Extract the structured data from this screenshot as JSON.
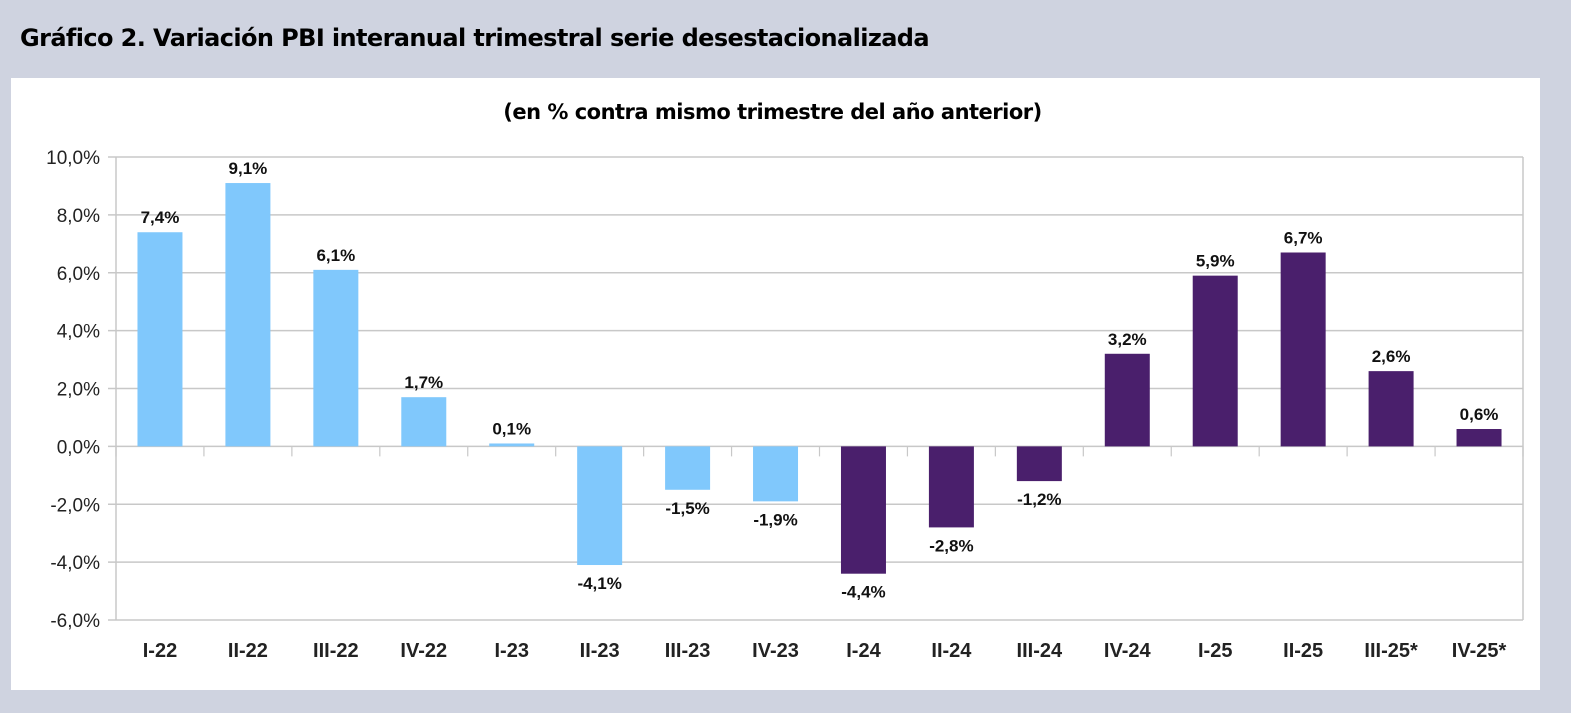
{
  "header": {
    "title": "Gráfico 2. Variación PBI interanual trimestral serie desestacionalizada"
  },
  "chart_data": {
    "type": "bar",
    "title": "Gráfico 2. Variación PBI interanual trimestral serie desestacionalizada",
    "subtitle": "(en % contra mismo trimestre del año anterior)",
    "xlabel": "",
    "ylabel": "",
    "categories": [
      "I-22",
      "II-22",
      "III-22",
      "IV-22",
      "I-23",
      "II-23",
      "III-23",
      "IV-23",
      "I-24",
      "II-24",
      "III-24",
      "IV-24",
      "I-25",
      "II-25",
      "III-25*",
      "IV-25*"
    ],
    "values": [
      7.4,
      9.1,
      6.1,
      1.7,
      0.1,
      -4.1,
      -1.5,
      -1.9,
      -4.4,
      -2.8,
      -1.2,
      3.2,
      5.9,
      6.7,
      2.6,
      0.6
    ],
    "data_labels": [
      "7,4%",
      "9,1%",
      "6,1%",
      "1,7%",
      "0,1%",
      "-4,1%",
      "-1,5%",
      "-1,9%",
      "-4,4%",
      "-2,8%",
      "-1,2%",
      "3,2%",
      "5,9%",
      "6,7%",
      "2,6%",
      "0,6%"
    ],
    "ylim": [
      -6,
      10
    ],
    "yticks": [
      10,
      8,
      6,
      4,
      2,
      0,
      -2,
      -4,
      -6
    ],
    "ytick_labels": [
      "10,0%",
      "8,0%",
      "6,0%",
      "4,0%",
      "2,0%",
      "0,0%",
      "-2,0%",
      "-4,0%",
      "-6,0%"
    ],
    "grid": true,
    "legend": "none",
    "bar_colors": [
      "#80c8fc",
      "#80c8fc",
      "#80c8fc",
      "#80c8fc",
      "#80c8fc",
      "#80c8fc",
      "#80c8fc",
      "#80c8fc",
      "#4a1f6c",
      "#4a1f6c",
      "#4a1f6c",
      "#4a1f6c",
      "#4a1f6c",
      "#4a1f6c",
      "#4a1f6c",
      "#4a1f6c"
    ]
  }
}
